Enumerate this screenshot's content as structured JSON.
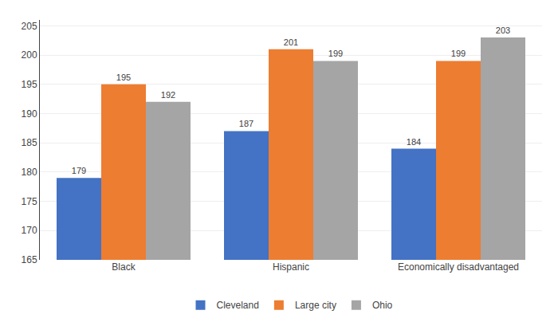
{
  "chart_data": {
    "type": "bar",
    "categories": [
      "Black",
      "Hispanic",
      "Economically disadvantaged"
    ],
    "series": [
      {
        "name": "Cleveland",
        "color": "#4472C4",
        "values": [
          179,
          187,
          184
        ]
      },
      {
        "name": "Large city",
        "color": "#ED7D31",
        "values": [
          195,
          201,
          199
        ]
      },
      {
        "name": "Ohio",
        "color": "#A5A5A5",
        "values": [
          192,
          199,
          203
        ]
      }
    ],
    "ylim": [
      165,
      206
    ],
    "yticks": [
      165,
      170,
      175,
      180,
      185,
      190,
      195,
      200,
      205
    ],
    "grid": true,
    "legend": "bottom",
    "data_labels": true
  }
}
